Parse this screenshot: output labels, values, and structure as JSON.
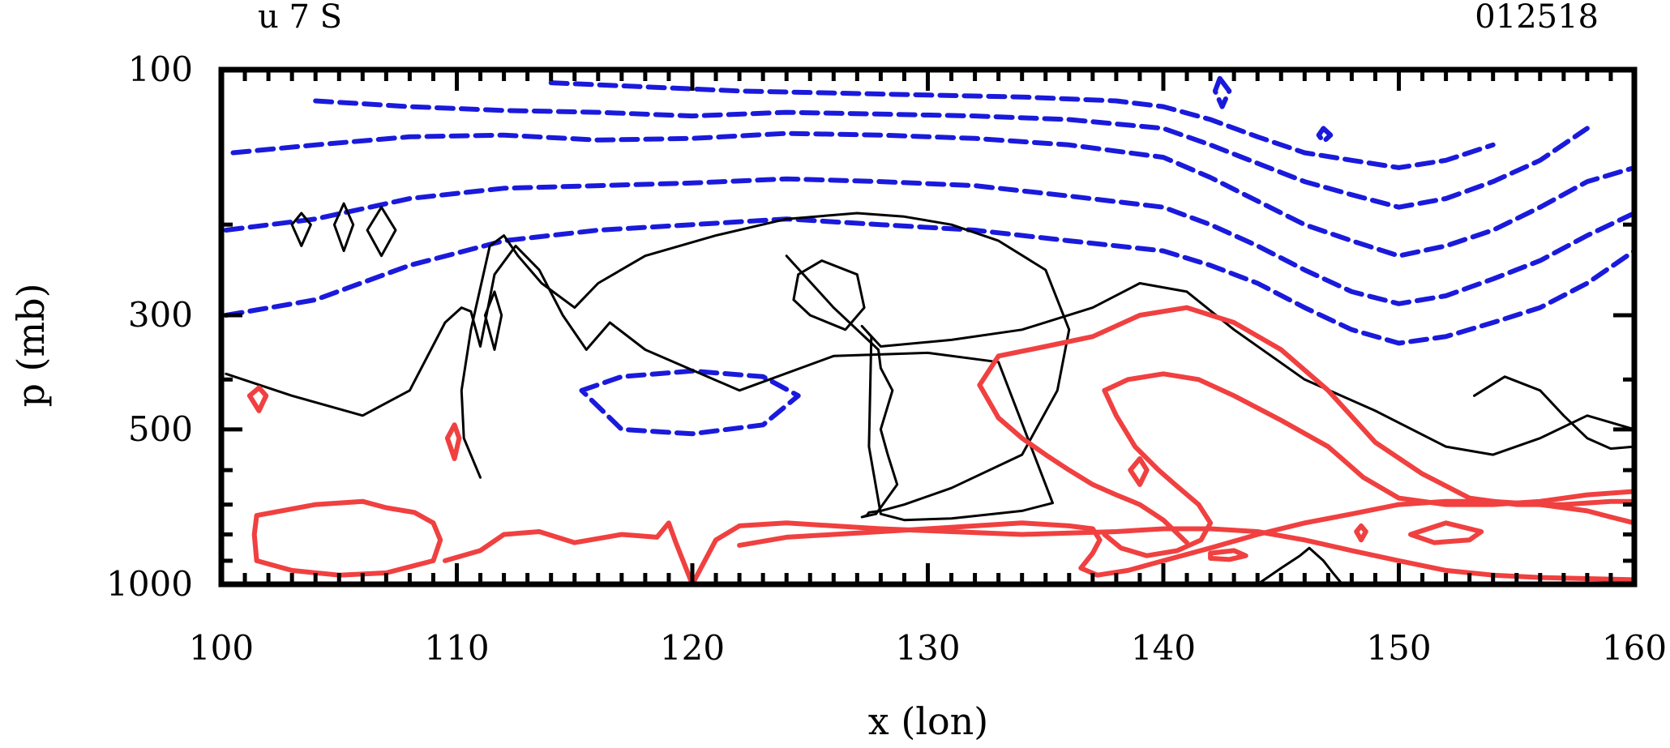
{
  "header": {
    "title_left": "u 7 S",
    "title_right": "012518"
  },
  "colors": {
    "positive": "#f04040",
    "negative": "#1a1adc",
    "zero": "#000000",
    "frame": "#000000"
  },
  "chart_data": {
    "type": "contour",
    "title": "u 7 S",
    "label_right": "012518",
    "xlabel": "x (lon)",
    "ylabel": "p (mb)",
    "xlim": [
      100,
      160
    ],
    "ylim": [
      1000,
      100
    ],
    "y_scale": "log",
    "x_ticks": [
      100,
      110,
      120,
      130,
      140,
      150,
      160
    ],
    "x_tick_labels": [
      "100",
      "110",
      "120",
      "130",
      "140",
      "150",
      "160"
    ],
    "y_ticks": [
      100,
      300,
      500,
      1000
    ],
    "y_tick_labels": [
      "100",
      "300",
      "500",
      "1000"
    ],
    "legend": "none",
    "grid": false,
    "contour_styles": {
      "positive": "solid red",
      "zero": "thin solid black",
      "negative": "dashed blue"
    },
    "contours": [
      {
        "sign": "negative",
        "lon": [
          100.2,
          104,
          108,
          112,
          116,
          120,
          124,
          128,
          132,
          136,
          140,
          142,
          144,
          146,
          148,
          150,
          152,
          154,
          156,
          158,
          160
        ],
        "p": [
          300,
          280,
          240,
          215,
          205,
          200,
          195,
          200,
          205,
          215,
          225,
          240,
          260,
          290,
          320,
          340,
          330,
          310,
          290,
          260,
          225
        ]
      },
      {
        "sign": "negative",
        "lon": [
          100.2,
          104,
          108,
          112,
          116,
          120,
          124,
          128,
          132,
          136,
          140,
          142,
          144,
          146,
          148,
          150,
          152,
          154,
          156,
          158,
          160
        ],
        "p": [
          205,
          195,
          178,
          170,
          168,
          166,
          163,
          165,
          168,
          176,
          185,
          200,
          220,
          245,
          270,
          285,
          275,
          255,
          235,
          210,
          190
        ]
      },
      {
        "sign": "negative",
        "lon": [
          100.5,
          104,
          108,
          112,
          116,
          120,
          124,
          128,
          132,
          136,
          140,
          142,
          144,
          146,
          148,
          150,
          152,
          154,
          156,
          158,
          160
        ],
        "p": [
          145,
          140,
          135,
          134,
          137,
          136,
          133,
          134,
          136,
          140,
          148,
          162,
          180,
          200,
          215,
          230,
          220,
          205,
          185,
          165,
          155
        ]
      },
      {
        "sign": "negative",
        "lon": [
          104,
          108,
          112,
          116,
          120,
          124,
          128,
          132,
          136,
          140,
          142,
          144,
          146,
          148,
          150,
          152,
          154,
          156,
          158
        ],
        "p": [
          115,
          118,
          120,
          121,
          123,
          121,
          122,
          123,
          125,
          130,
          140,
          152,
          165,
          175,
          185,
          178,
          165,
          150,
          130
        ]
      },
      {
        "sign": "negative",
        "lon": [
          114,
          118,
          122,
          126,
          130,
          134,
          138,
          140,
          142,
          144,
          146,
          148,
          150,
          152,
          154
        ],
        "p": [
          106,
          108,
          110,
          111,
          112,
          113,
          115,
          118,
          125,
          135,
          145,
          150,
          155,
          150,
          140
        ]
      },
      {
        "sign": "negative",
        "lon": [
          115.3,
          117,
          120,
          123,
          124.5,
          123,
          120,
          117,
          115.3
        ],
        "p": [
          420,
          395,
          385,
          395,
          430,
          490,
          510,
          500,
          420
        ]
      },
      {
        "sign": "negative",
        "closed": true,
        "lon": [
          142.4,
          142.8,
          142.5,
          142.2,
          142.4
        ],
        "p": [
          104,
          110,
          118,
          110,
          104
        ]
      },
      {
        "sign": "negative",
        "closed": true,
        "lon": [
          146.8,
          147.1,
          146.8,
          146.6,
          146.8
        ],
        "p": [
          130,
          134,
          138,
          134,
          130
        ]
      },
      {
        "sign": "zero",
        "lon": [
          100.2,
          103,
          106,
          108,
          109.5,
          110.2,
          110.6,
          111,
          111.6,
          112.5,
          113.5,
          114.5,
          115.5,
          116.5,
          118,
          122,
          126,
          130,
          133,
          135.3,
          134,
          131,
          129,
          128,
          127.5,
          127.6,
          127.2,
          128,
          131,
          134,
          137,
          139,
          141,
          143,
          146,
          149,
          152,
          154,
          156,
          158,
          160
        ],
        "p": [
          390,
          430,
          470,
          420,
          310,
          290,
          295,
          345,
          250,
          220,
          245,
          300,
          350,
          310,
          350,
          420,
          360,
          355,
          370,
          695,
          720,
          745,
          750,
          730,
          540,
          330,
          315,
          345,
          335,
          320,
          290,
          260,
          270,
          320,
          400,
          460,
          540,
          560,
          520,
          470,
          500
        ]
      },
      {
        "sign": "zero",
        "lon": [
          111,
          110.3,
          110.2,
          110.6,
          111.4,
          112,
          112.6,
          113.6,
          115,
          116,
          118,
          121,
          124,
          127,
          129,
          131,
          133,
          135,
          136,
          135.5,
          134,
          131,
          129,
          128,
          127.5,
          127.4,
          127.2,
          127.8,
          128.7,
          128.3,
          128,
          128.5,
          128,
          127.9,
          126,
          124
        ],
        "p": [
          620,
          520,
          420,
          320,
          220,
          210,
          230,
          260,
          290,
          260,
          230,
          210,
          195,
          190,
          193,
          200,
          215,
          245,
          320,
          420,
          560,
          650,
          700,
          720,
          725,
          735,
          740,
          730,
          640,
          560,
          500,
          420,
          380,
          350,
          290,
          230
        ]
      },
      {
        "sign": "zero",
        "closed": true,
        "lon": [
          124.5,
          125.5,
          127,
          127.3,
          126.5,
          125,
          124.3,
          124.5
        ],
        "p": [
          250,
          235,
          250,
          290,
          320,
          300,
          280,
          250
        ]
      },
      {
        "sign": "zero",
        "closed": true,
        "lon": [
          103,
          103.4,
          103.8,
          103.4,
          103
        ],
        "p": [
          200,
          190,
          200,
          220,
          200
        ]
      },
      {
        "sign": "zero",
        "closed": true,
        "lon": [
          104.8,
          105.2,
          105.6,
          105.2,
          104.8
        ],
        "p": [
          200,
          182,
          200,
          225,
          200
        ]
      },
      {
        "sign": "zero",
        "closed": true,
        "lon": [
          106.2,
          106.8,
          107.4,
          106.8,
          106.2
        ],
        "p": [
          205,
          185,
          205,
          230,
          205
        ]
      },
      {
        "sign": "zero",
        "closed": true,
        "lon": [
          111.2,
          111.6,
          111.9,
          111.6,
          111.2
        ],
        "p": [
          300,
          270,
          300,
          350,
          300
        ]
      },
      {
        "sign": "zero",
        "lon": [
          153.2,
          154.5,
          156,
          157,
          158,
          159,
          160
        ],
        "p": [
          430,
          395,
          420,
          470,
          520,
          545,
          540
        ]
      },
      {
        "sign": "zero",
        "lon": [
          144,
          145,
          145.8,
          146.2,
          146.8,
          147.2,
          147.6
        ],
        "p": [
          1000,
          930,
          880,
          850,
          900,
          950,
          1000
        ]
      },
      {
        "sign": "positive",
        "lon": [
          101.5,
          104,
          106,
          107,
          108.2,
          109,
          109.3,
          109,
          107,
          105,
          103,
          101.5,
          101.4,
          101.5
        ],
        "p": [
          735,
          700,
          690,
          710,
          725,
          760,
          820,
          900,
          950,
          960,
          940,
          900,
          800,
          735
        ]
      },
      {
        "sign": "positive",
        "closed": true,
        "lon": [
          101.2,
          101.6,
          101.9,
          101.6,
          101.2
        ],
        "p": [
          430,
          415,
          430,
          460,
          430
        ]
      },
      {
        "sign": "positive",
        "closed": true,
        "lon": [
          109.6,
          109.9,
          110.1,
          109.9,
          109.6
        ],
        "p": [
          520,
          490,
          520,
          570,
          520
        ]
      },
      {
        "sign": "positive",
        "lon": [
          109.5,
          111,
          112,
          113.5,
          115,
          117,
          118.5,
          119,
          119.3,
          120,
          121,
          122,
          124,
          126,
          128,
          131,
          134,
          136,
          138,
          140,
          142,
          144,
          146,
          148,
          150,
          152,
          154,
          156,
          158,
          160
        ],
        "p": [
          900,
          860,
          800,
          790,
          830,
          800,
          810,
          760,
          830,
          1000,
          820,
          770,
          760,
          770,
          780,
          790,
          800,
          795,
          790,
          780,
          780,
          790,
          820,
          860,
          900,
          940,
          960,
          970,
          975,
          980
        ]
      },
      {
        "sign": "positive",
        "lon": [
          122,
          124,
          126,
          128,
          130,
          132,
          134,
          136,
          137,
          137.3,
          137,
          136.5,
          137.2,
          138.5,
          140,
          142,
          144,
          146,
          148,
          150,
          152,
          154,
          156,
          158,
          159,
          160
        ],
        "p": [
          840,
          810,
          800,
          790,
          780,
          770,
          760,
          770,
          780,
          820,
          870,
          930,
          960,
          940,
          900,
          850,
          800,
          760,
          730,
          700,
          690,
          690,
          700,
          720,
          740,
          760
        ]
      },
      {
        "sign": "positive",
        "lon": [
          132.2,
          133,
          135,
          137,
          139,
          141,
          143,
          145,
          147,
          149,
          151,
          153,
          155,
          157,
          159,
          160
        ],
        "p": [
          410,
          360,
          345,
          330,
          300,
          290,
          310,
          350,
          420,
          530,
          610,
          680,
          700,
          700,
          690,
          690
        ]
      },
      {
        "sign": "positive",
        "lon": [
          132.2,
          133,
          134,
          135,
          136,
          137,
          138,
          139,
          140,
          141
        ],
        "p": [
          410,
          475,
          520,
          560,
          600,
          640,
          670,
          700,
          750,
          830
        ]
      },
      {
        "sign": "positive",
        "lon": [
          137.5,
          138.5,
          140,
          141.5,
          143,
          145,
          147,
          148.5,
          150,
          152,
          154,
          156,
          158,
          160
        ],
        "p": [
          420,
          400,
          390,
          400,
          430,
          480,
          540,
          620,
          680,
          700,
          700,
          690,
          670,
          660
        ]
      },
      {
        "sign": "positive",
        "lon": [
          137.5,
          138,
          138.8,
          139.8,
          140.5,
          141.5,
          142,
          141.6,
          140.6,
          139.3,
          138.2,
          137.5
        ],
        "p": [
          420,
          470,
          540,
          600,
          640,
          700,
          760,
          820,
          860,
          880,
          850,
          800
        ]
      },
      {
        "sign": "positive",
        "closed": true,
        "lon": [
          138.6,
          139,
          139.3,
          139,
          138.6
        ],
        "p": [
          600,
          570,
          600,
          640,
          600
        ]
      },
      {
        "sign": "positive",
        "closed": true,
        "lon": [
          150.5,
          152,
          153.5,
          153,
          151.5,
          150.5
        ],
        "p": [
          800,
          760,
          790,
          820,
          830,
          800
        ]
      },
      {
        "sign": "positive",
        "closed": true,
        "lon": [
          148.2,
          148.4,
          148.6,
          148.4,
          148.2
        ],
        "p": [
          790,
          770,
          790,
          820,
          790
        ]
      },
      {
        "sign": "positive",
        "closed": true,
        "lon": [
          142,
          143,
          143.5,
          142.8,
          142,
          142
        ],
        "p": [
          870,
          860,
          880,
          895,
          890,
          870
        ]
      }
    ]
  }
}
